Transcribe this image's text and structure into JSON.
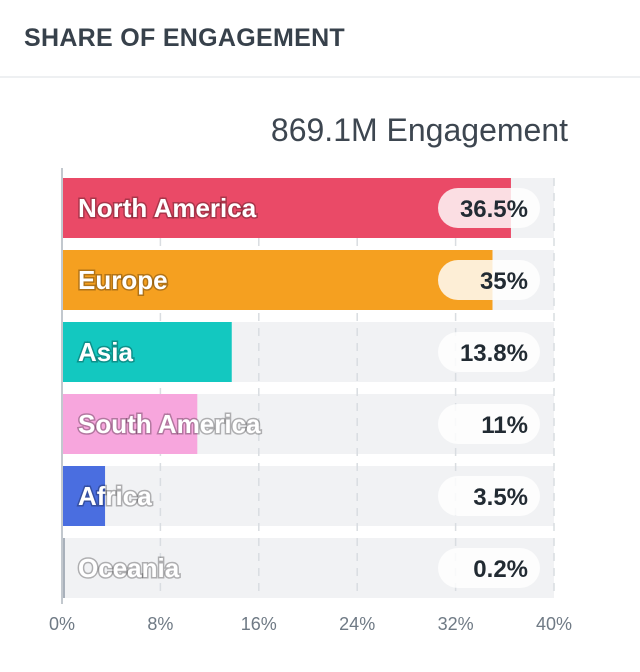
{
  "header": {
    "title": "SHARE OF ENGAGEMENT"
  },
  "summary": {
    "total": "869.1M Engagement"
  },
  "chart_data": {
    "type": "bar",
    "orientation": "horizontal",
    "categories": [
      "North America",
      "Europe",
      "Asia",
      "South America",
      "Africa",
      "Oceania"
    ],
    "values": [
      36.5,
      35,
      13.8,
      11,
      3.5,
      0.2
    ],
    "value_labels": [
      "36.5%",
      "35%",
      "13.8%",
      "11%",
      "3.5%",
      "0.2%"
    ],
    "colors": [
      "#ea4a67",
      "#f5a020",
      "#13c8c0",
      "#f7a6dd",
      "#4a6ee0",
      "#a9b1bb"
    ],
    "xlim": [
      0,
      40
    ],
    "xticks": [
      0,
      8,
      16,
      24,
      32,
      40
    ],
    "xtick_labels": [
      "0%",
      "8%",
      "16%",
      "24%",
      "32%",
      "40%"
    ],
    "grid": true,
    "track_color": "#f1f2f4"
  }
}
